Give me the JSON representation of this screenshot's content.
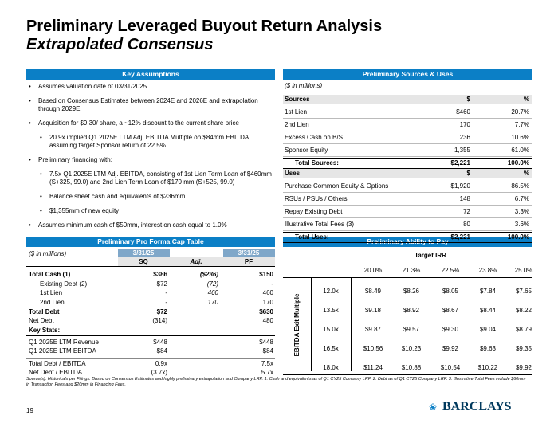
{
  "header": {
    "title": "Preliminary Leveraged Buyout Return Analysis",
    "subtitle": "Extrapolated Consensus"
  },
  "key_assumptions": {
    "title": "Key Assumptions",
    "bullets": [
      {
        "text": "Assumes valuation date of 03/31/2025"
      },
      {
        "text": "Based on Consensus Estimates between 2024E and 2026E and extrapolation through 2029E"
      },
      {
        "text": "Acquisition for $9.30/ share, a ~12% discount to the current share price",
        "sub": [
          "20.9x implied Q1 2025E LTM Adj. EBITDA Multiple on $84mm EBITDA, assuming target Sponsor return of 22.5%"
        ]
      },
      {
        "text": "Preliminary financing with:",
        "sub": [
          "7.5x Q1 2025E LTM Adj. EBITDA, consisting of 1st Lien Term Loan of $460mm (S+325, 99.0) and 2nd Lien Term Loan of $170 mm (S+525, 99.0)",
          "Balance sheet cash and equivalents of $236mm",
          "$1,355mm of new equity"
        ]
      },
      {
        "text": "Assumes minimum cash of $50mm, interest on cash equal to 1.0%"
      }
    ]
  },
  "sources_uses": {
    "title": "Preliminary Sources & Uses",
    "units": "($ in millions)",
    "sources": {
      "header": [
        "Sources",
        "$",
        "%"
      ],
      "rows": [
        [
          "1st Lien",
          "$460",
          "20.7%"
        ],
        [
          "2nd Lien",
          "170",
          "7.7%"
        ],
        [
          "Excess Cash on B/S",
          "236",
          "10.6%"
        ],
        [
          "Sponsor Equity",
          "1,355",
          "61.0%"
        ]
      ],
      "total": [
        "Total Sources:",
        "$2,221",
        "100.0%"
      ]
    },
    "uses": {
      "header": [
        "Uses",
        "$",
        "%"
      ],
      "rows": [
        [
          "Purchase Common Equity & Options",
          "$1,920",
          "86.5%"
        ],
        [
          "RSUs / PSUs / Others",
          "148",
          "6.7%"
        ],
        [
          "Repay Existing Debt",
          "72",
          "3.3%"
        ],
        [
          "Illustrative Total Fees (3)",
          "80",
          "3.6%"
        ]
      ],
      "total": [
        "Total Uses:",
        "$2,221",
        "100.0%"
      ]
    }
  },
  "cap_table": {
    "title": "Preliminary Pro Forma Cap Table",
    "units": "($ in millions)",
    "dates": [
      "3/31/25",
      "3/31/25"
    ],
    "columns": [
      "SQ",
      "Adj.",
      "PF"
    ],
    "rows": [
      [
        "Total Cash (1)",
        "$386",
        "($236)",
        "$150"
      ],
      [
        "Existing Debt (2)",
        "$72",
        "(72)",
        "-"
      ],
      [
        "1st Lien",
        "-",
        "460",
        "460"
      ],
      [
        "2nd Lien",
        "-",
        "170",
        "170"
      ],
      [
        "Total Debt",
        "$72",
        null,
        "$630"
      ],
      [
        "Net Debt",
        "(314)",
        null,
        "480"
      ]
    ],
    "key_stats_label": "Key Stats:",
    "stats": [
      [
        "Q1 2025E LTM Revenue",
        "$448",
        null,
        "$448"
      ],
      [
        "Q1 2025E LTM EBITDA",
        "$84",
        null,
        "$84"
      ],
      [
        "Total Debt / EBITDA",
        "0.9x",
        null,
        "7.5x"
      ],
      [
        "Net Debt / EBITDA",
        "(3.7x)",
        null,
        "5.7x"
      ]
    ]
  },
  "ability_to_pay": {
    "title": "Preliminary Ability to Pay",
    "column_title": "Target IRR",
    "row_title": "EBITDA Exit Multiple",
    "irr": [
      "20.0%",
      "21.3%",
      "22.5%",
      "23.8%",
      "25.0%"
    ],
    "rows": [
      {
        "multiple": "12.0x",
        "values": [
          "$8.49",
          "$8.26",
          "$8.05",
          "$7.84",
          "$7.65"
        ]
      },
      {
        "multiple": "13.5x",
        "values": [
          "$9.18",
          "$8.92",
          "$8.67",
          "$8.44",
          "$8.22"
        ]
      },
      {
        "multiple": "15.0x",
        "values": [
          "$9.87",
          "$9.57",
          "$9.30",
          "$9.04",
          "$8.79"
        ]
      },
      {
        "multiple": "16.5x",
        "values": [
          "$10.56",
          "$10.23",
          "$9.92",
          "$9.63",
          "$9.35"
        ]
      },
      {
        "multiple": "18.0x",
        "values": [
          "$11.24",
          "$10.88",
          "$10.54",
          "$10.22",
          "$9.92"
        ]
      }
    ]
  },
  "footer": {
    "source": "Source(s): Historicals per Filings. Based on Consensus Estimates and highly preliminary extrapolation and Company LRP. 1: Cash and equivalents as of Q1 CY25 Company LRP. 2: Debt as of Q1 CY25 Company LRP. 3: Illustrative Total Fees include $60mm in Transaction Fees and $20mm in Financing Fees.",
    "page": "19",
    "logo": "BARCLAYS"
  }
}
